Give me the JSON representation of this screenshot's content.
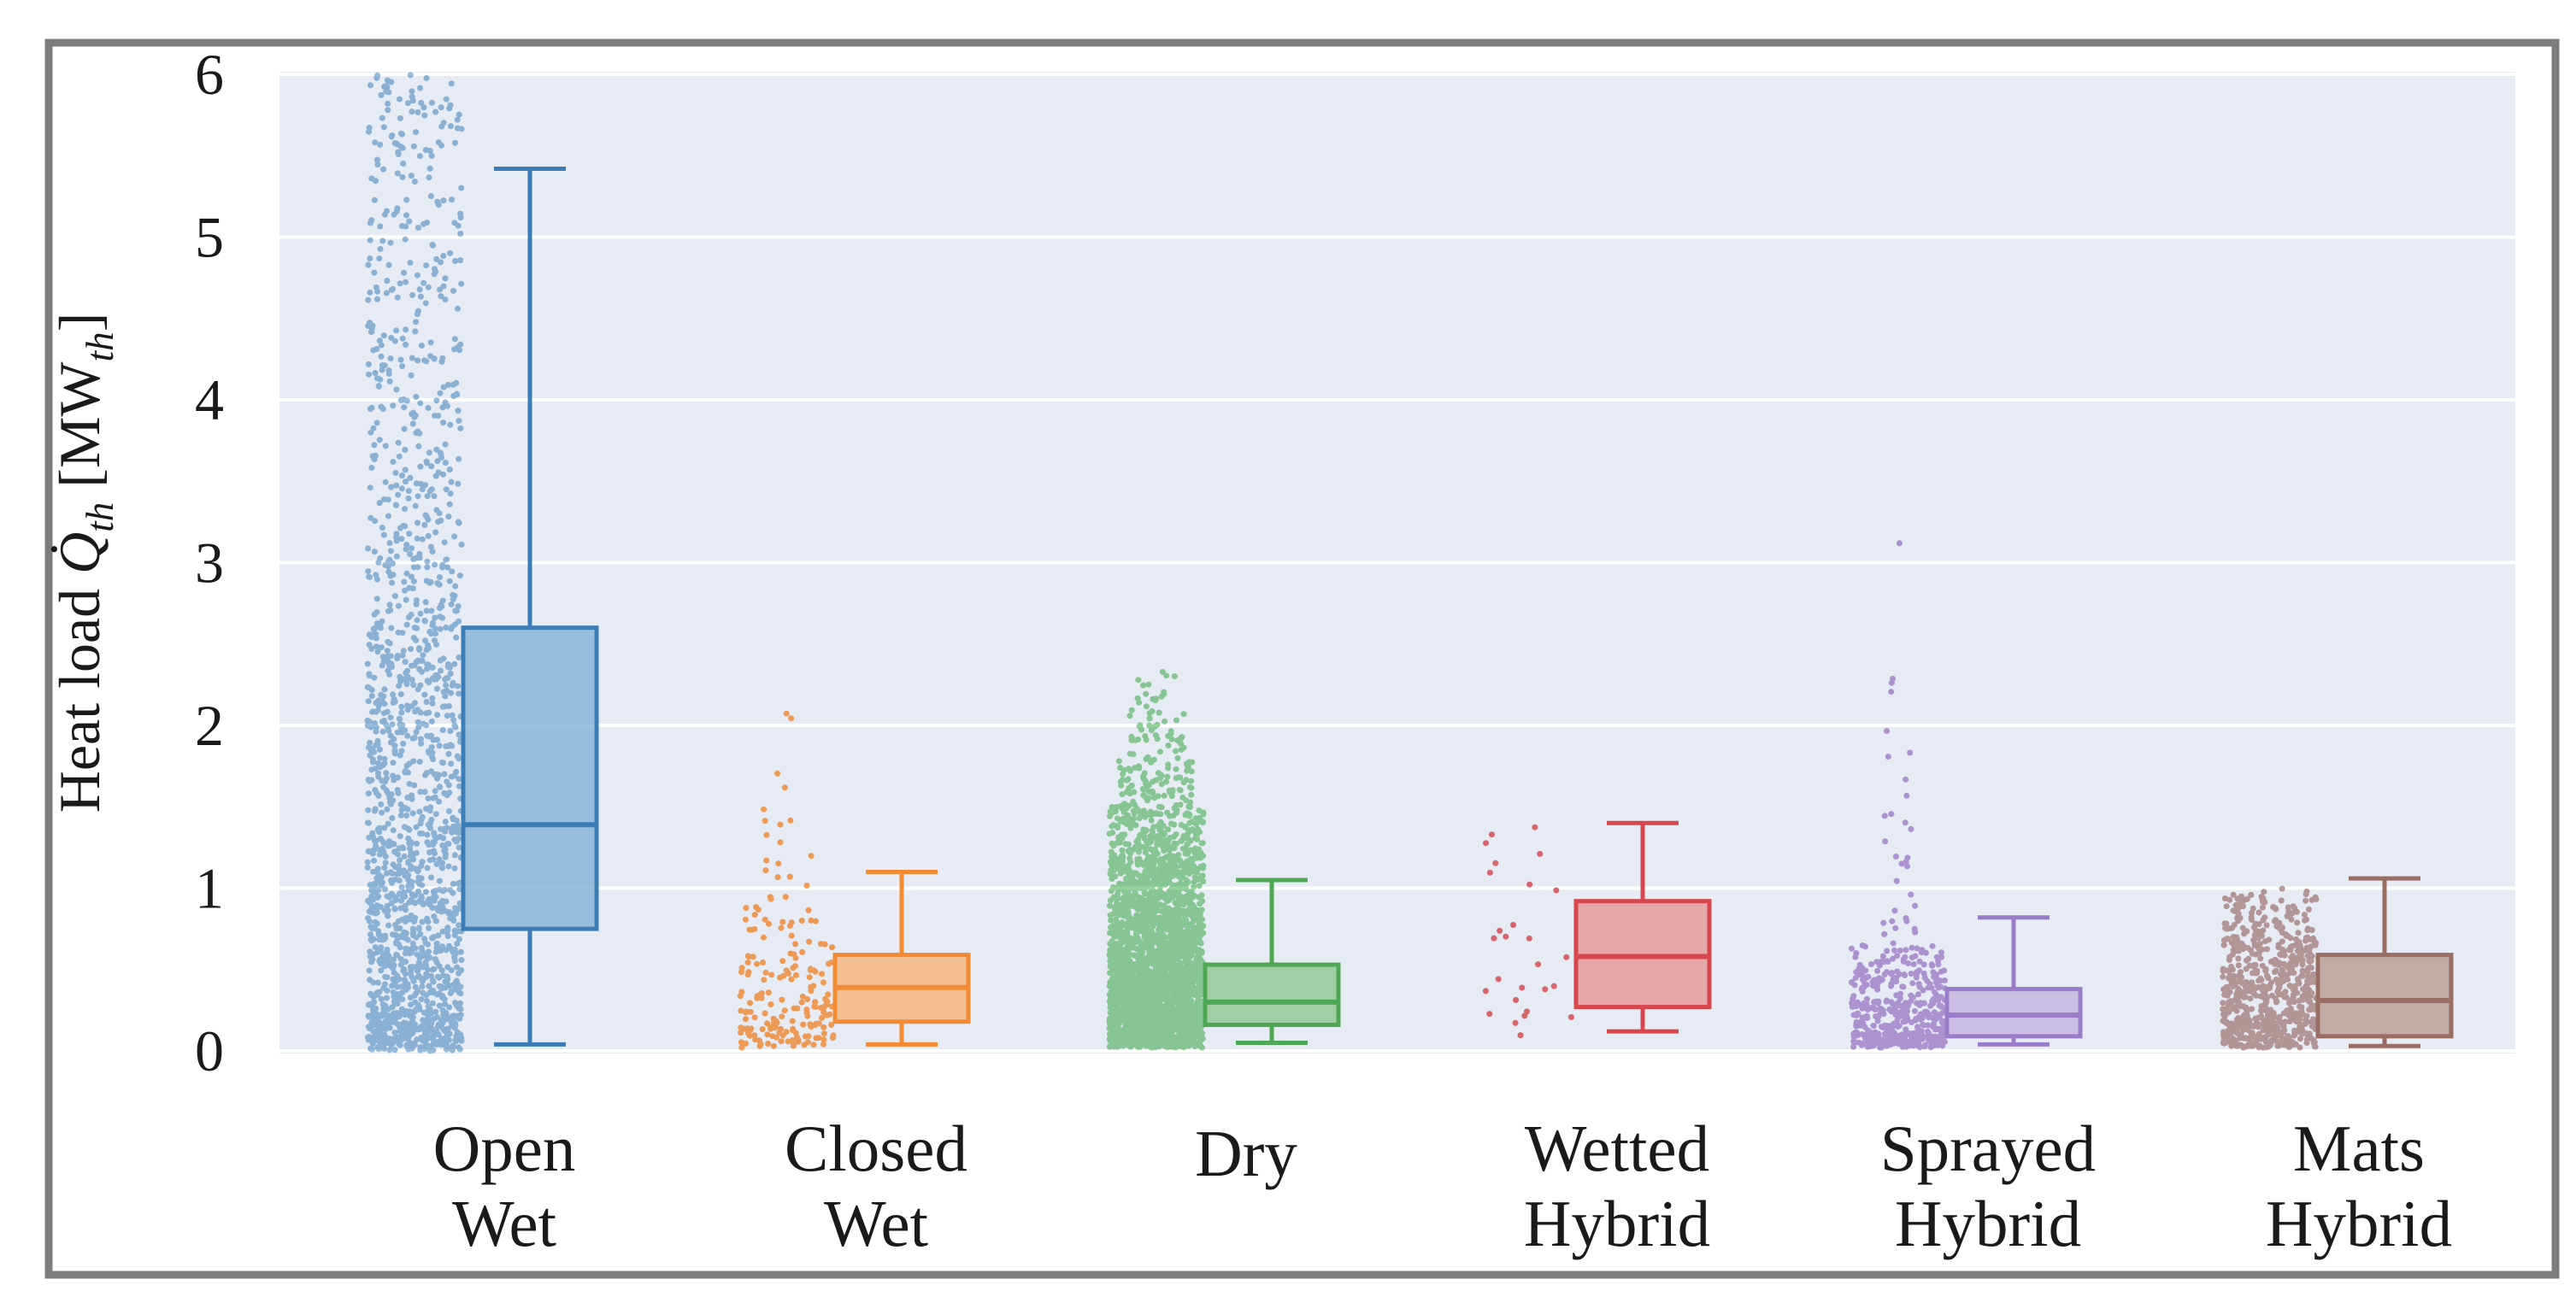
{
  "figure": {
    "frame_color": "#7d7d7d",
    "page_bg": "#ffffff",
    "plot_bg": "#e6ebf4",
    "grid_color": "#ffffff",
    "text_color": "#1a1a1a"
  },
  "y_axis": {
    "label_parts": {
      "prefix": "Heat load ",
      "q_symbol": "Q̇",
      "q_sub": "th",
      "mid": " [MW",
      "unit_sub": "th",
      "suffix": "]"
    },
    "ticks": [
      0,
      1,
      2,
      3,
      4,
      5,
      6
    ]
  },
  "chart_data": {
    "type": "boxplot+strip",
    "title": "",
    "ylabel": "Heat load Q_th [MW_th]",
    "ylim": [
      -0.02,
      6.02
    ],
    "grid": true,
    "legend": "none",
    "categories": [
      "Open Wet",
      "Closed Wet",
      "Dry",
      "Wetted Hybrid",
      "Sprayed Hybrid",
      "Mats Hybrid"
    ],
    "series": [
      {
        "name": "Open Wet",
        "label_lines": [
          "Open",
          "Wet"
        ],
        "box": {
          "whisker_low": 0.04,
          "q1": 0.75,
          "median": 1.39,
          "q3": 2.6,
          "whisker_high": 5.42
        },
        "colors": {
          "dot": "#2e76b3",
          "edge": "#3c7db7",
          "fill": "#88b2d7"
        },
        "dot_opacity": 0.5,
        "scatter_bands": [
          [
            0.0,
            0.25,
            300
          ],
          [
            0.25,
            0.75,
            290
          ],
          [
            0.75,
            1.5,
            340
          ],
          [
            1.5,
            2.5,
            310
          ],
          [
            2.5,
            3.5,
            190
          ],
          [
            3.5,
            4.5,
            130
          ],
          [
            4.5,
            5.5,
            95
          ],
          [
            5.5,
            6.0,
            65
          ]
        ]
      },
      {
        "name": "Closed Wet",
        "label_lines": [
          "Closed",
          "Wet"
        ],
        "box": {
          "whisker_low": 0.04,
          "q1": 0.18,
          "median": 0.39,
          "q3": 0.59,
          "whisker_high": 1.1
        },
        "colors": {
          "dot": "#f07f23",
          "edge": "#f28b33",
          "fill": "#f6b47f"
        },
        "dot_opacity": 0.75,
        "scatter_bands": [
          [
            0.02,
            0.15,
            55
          ],
          [
            0.15,
            0.35,
            52
          ],
          [
            0.35,
            0.6,
            40
          ],
          [
            0.6,
            0.9,
            26
          ],
          [
            0.9,
            1.2,
            10,
            0.7
          ],
          [
            1.2,
            1.6,
            6,
            0.5
          ],
          [
            1.6,
            1.85,
            2,
            0.4
          ],
          [
            2.0,
            2.08,
            2,
            0.3
          ]
        ]
      },
      {
        "name": "Dry",
        "label_lines": [
          "Dry"
        ],
        "box": {
          "whisker_low": 0.05,
          "q1": 0.16,
          "median": 0.3,
          "q3": 0.53,
          "whisker_high": 1.05
        },
        "colors": {
          "dot": "#13991e",
          "edge": "#4ea754",
          "fill": "#92c795"
        },
        "dot_opacity": 0.45,
        "scatter_bands": [
          [
            0.02,
            0.3,
            950
          ],
          [
            0.3,
            0.6,
            750
          ],
          [
            0.6,
            0.9,
            520
          ],
          [
            0.9,
            1.2,
            370
          ],
          [
            1.2,
            1.5,
            210
          ],
          [
            1.5,
            1.8,
            95,
            0.8
          ],
          [
            1.8,
            2.1,
            40,
            0.6
          ],
          [
            2.1,
            2.33,
            16,
            0.45
          ]
        ]
      },
      {
        "name": "Wetted Hybrid",
        "label_lines": [
          "Wetted",
          "Hybrid"
        ],
        "box": {
          "whisker_low": 0.12,
          "q1": 0.27,
          "median": 0.58,
          "q3": 0.92,
          "whisker_high": 1.4
        },
        "colors": {
          "dot": "#d2434a",
          "edge": "#d8474d",
          "fill": "#e7989c"
        },
        "dot_opacity": 0.8,
        "scatter_bands": [
          [
            0.06,
            0.25,
            6
          ],
          [
            0.25,
            0.55,
            7
          ],
          [
            0.55,
            0.9,
            6
          ],
          [
            0.9,
            1.2,
            4
          ],
          [
            1.2,
            1.45,
            4
          ]
        ]
      },
      {
        "name": "Sprayed Hybrid",
        "label_lines": [
          "Sprayed",
          "Hybrid"
        ],
        "box": {
          "whisker_low": 0.04,
          "q1": 0.09,
          "median": 0.22,
          "q3": 0.38,
          "whisker_high": 0.82
        },
        "colors": {
          "dot": "#7b4bb3",
          "edge": "#9a7dca",
          "fill": "#c6b4e1"
        },
        "dot_opacity": 0.55,
        "scatter_bands": [
          [
            0.02,
            0.12,
            160
          ],
          [
            0.12,
            0.3,
            140
          ],
          [
            0.3,
            0.5,
            95
          ],
          [
            0.5,
            0.65,
            45
          ],
          [
            0.65,
            0.9,
            12,
            0.4
          ],
          [
            0.9,
            1.3,
            8,
            0.35
          ],
          [
            1.3,
            1.7,
            6,
            0.3
          ],
          [
            1.7,
            2.05,
            3,
            0.3
          ],
          [
            2.05,
            2.3,
            3,
            0.3
          ],
          [
            3.08,
            3.12,
            1,
            0.1
          ]
        ]
      },
      {
        "name": "Mats Hybrid",
        "label_lines": [
          "Mats",
          "Hybrid"
        ],
        "box": {
          "whisker_low": 0.03,
          "q1": 0.09,
          "median": 0.31,
          "q3": 0.59,
          "whisker_high": 1.06
        },
        "colors": {
          "dot": "#7d4037",
          "edge": "#9a6e65",
          "fill": "#ba9c95"
        },
        "dot_opacity": 0.5,
        "scatter_bands": [
          [
            0.02,
            0.2,
            230
          ],
          [
            0.2,
            0.45,
            210
          ],
          [
            0.45,
            0.7,
            160
          ],
          [
            0.7,
            0.95,
            95
          ],
          [
            0.95,
            1.0,
            6
          ]
        ]
      }
    ]
  }
}
